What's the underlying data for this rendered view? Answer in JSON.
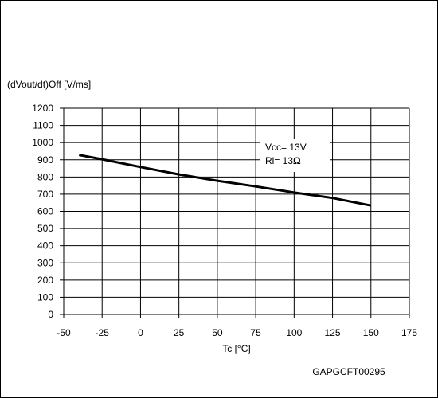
{
  "chart_data": {
    "type": "line",
    "title": "",
    "ylabel": "(dVout/dt)Off [V/ms]",
    "xlabel": "Tc [°C]",
    "xlim": [
      -50,
      175
    ],
    "ylim": [
      0,
      1200
    ],
    "x_ticks": [
      "-50",
      "-25",
      "0",
      "25",
      "50",
      "75",
      "100",
      "125",
      "150",
      "175"
    ],
    "y_ticks": [
      "0",
      "100",
      "200",
      "300",
      "400",
      "500",
      "600",
      "700",
      "800",
      "900",
      "1000",
      "1100",
      "1200"
    ],
    "grid": true,
    "series": [
      {
        "x": [
          -40,
          -25,
          0,
          25,
          50,
          75,
          100,
          125,
          150
        ],
        "values": [
          928,
          903,
          858,
          815,
          778,
          745,
          710,
          678,
          634
        ]
      }
    ],
    "annotations": {
      "vcc": "Vcc= 13V",
      "rl_prefix": "Rl= 13",
      "rl_unit": "Ω"
    },
    "figure_code": "GAPGCFT00295"
  }
}
